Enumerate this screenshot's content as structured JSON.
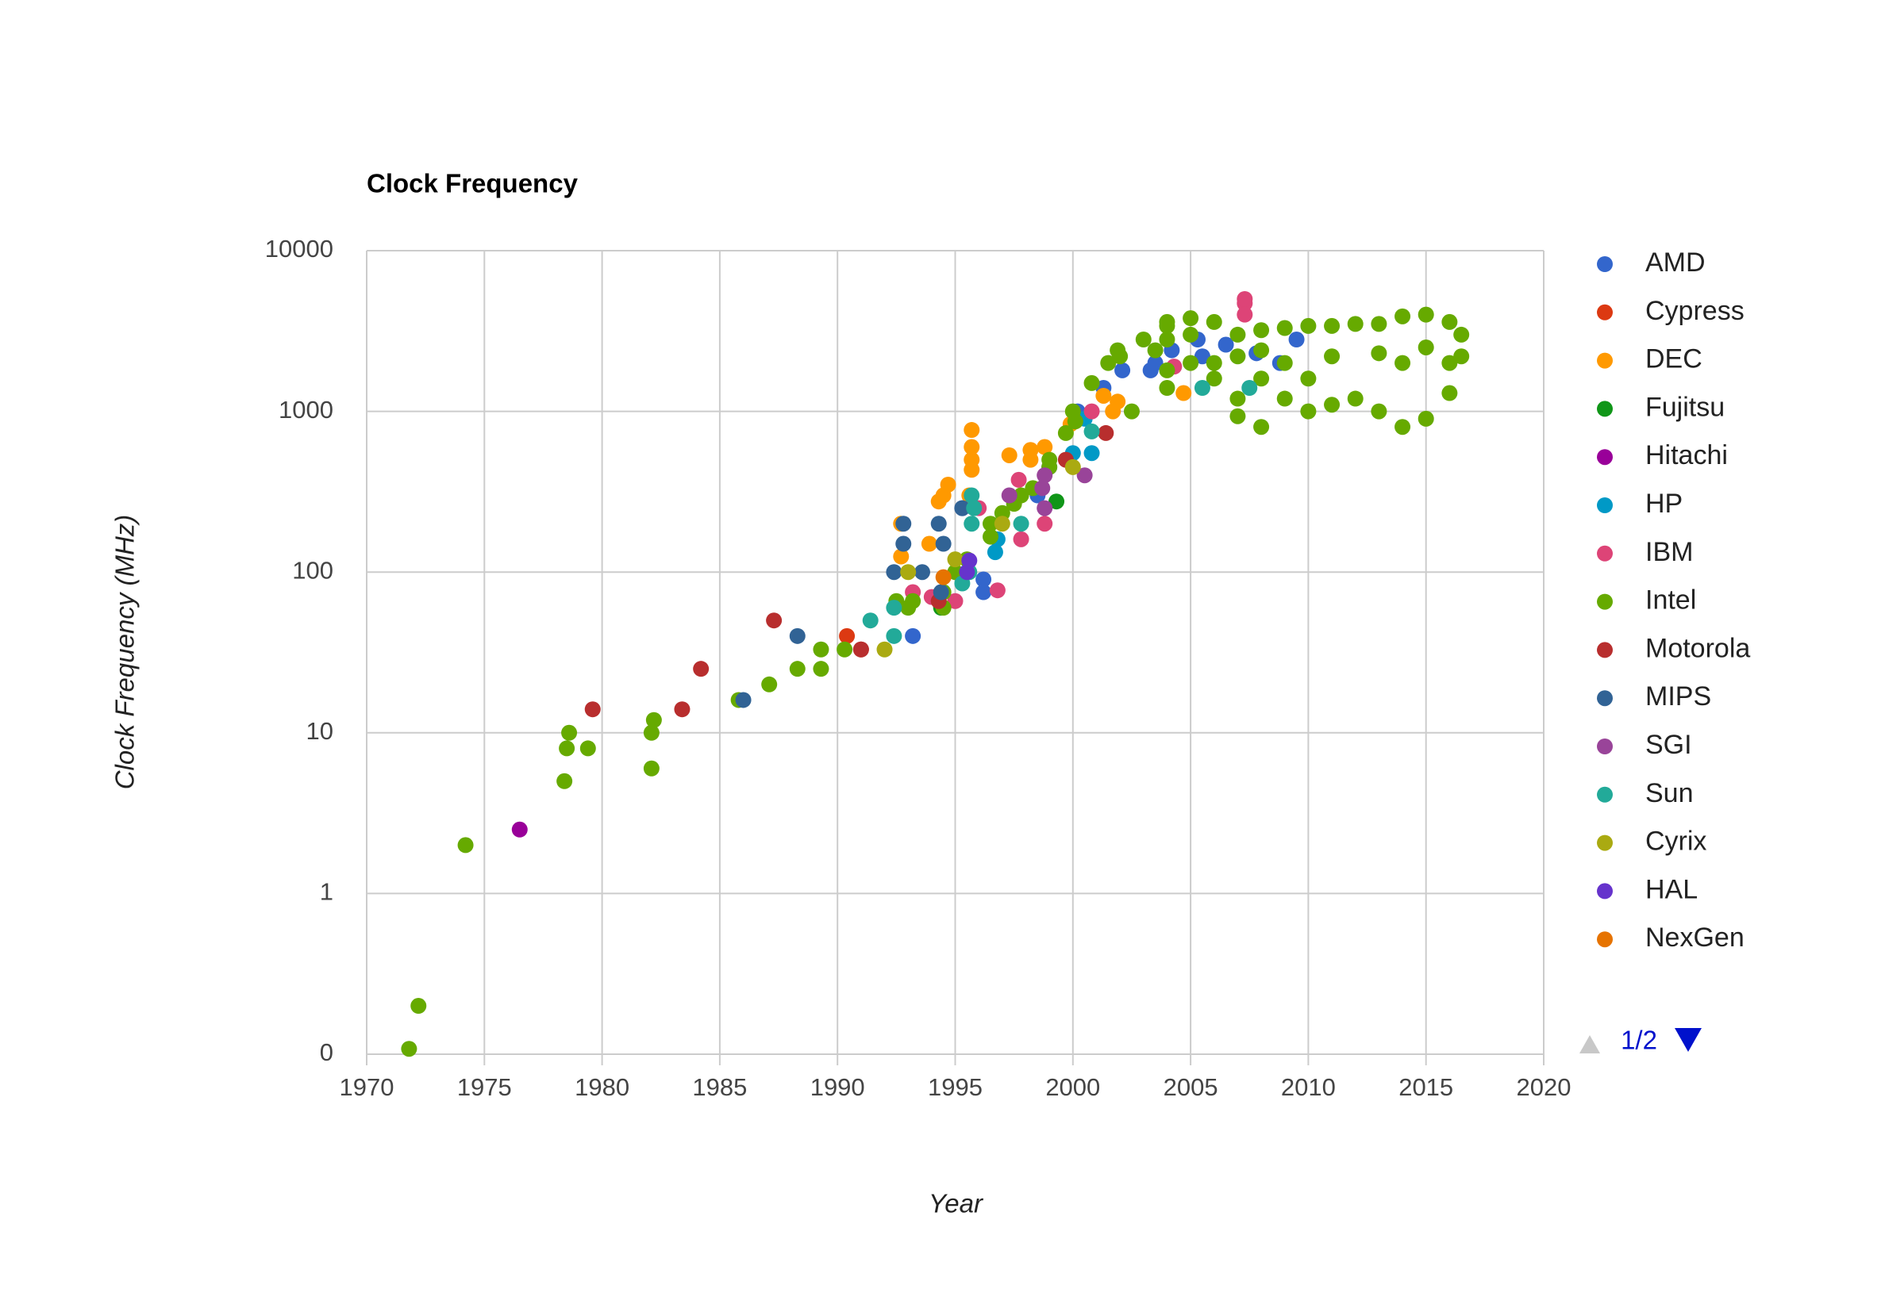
{
  "chart_data": {
    "type": "scatter",
    "title": "Clock Frequency",
    "x_label": "Year",
    "y_label": "Clock Frequency (MHz)",
    "xlim": [
      1970,
      2020
    ],
    "xticks": [
      1970,
      1975,
      1980,
      1985,
      1990,
      1995,
      2000,
      2005,
      2010,
      2015,
      2020
    ],
    "ylim": [
      0.1,
      10000
    ],
    "yticks": [
      {
        "value": 0.1,
        "label": "0"
      },
      1,
      10,
      100,
      1000,
      10000
    ],
    "y_log": true,
    "grid": true,
    "legend": "right",
    "legend_page": "1/2",
    "series": [
      {
        "name": "AMD",
        "color": "#3366cc",
        "x": [
          1993.2,
          1996.2,
          1996.2,
          1995.5,
          1995.3,
          1998.5,
          1999,
          2000.2,
          2001.3,
          2002.1,
          2003.3,
          2003.5,
          2004.2,
          2005.3,
          2005.5,
          2006.5,
          2007.8,
          2008.8,
          2009.5
        ],
        "values": [
          40,
          75,
          90,
          100,
          250,
          300,
          450,
          1000,
          1400,
          1800,
          1800,
          2000,
          2400,
          2800,
          2200,
          2600,
          2300,
          2000,
          2800
        ]
      },
      {
        "name": "Cypress",
        "color": "#dc3912",
        "x": [
          1990.4,
          1991
        ],
        "values": [
          40,
          33
        ]
      },
      {
        "name": "DEC",
        "color": "#ff9900",
        "x": [
          1992.7,
          1992.7,
          1993.9,
          1994.3,
          1994.5,
          1994.7,
          1995.6,
          1995.7,
          1995.7,
          1995.7,
          1995.7,
          1997.3,
          1998.2,
          1998.2,
          1998.8,
          1999.9,
          2001.3,
          2001.7,
          2001.9,
          2004.7
        ],
        "values": [
          125,
          200,
          150,
          275,
          300,
          350,
          300,
          433,
          500,
          600,
          766,
          533,
          500,
          575,
          600,
          833,
          1250,
          1000,
          1150,
          1300
        ]
      },
      {
        "name": "Fujitsu",
        "color": "#109618",
        "x": [
          1994.4,
          1999.3
        ],
        "values": [
          60,
          275
        ]
      },
      {
        "name": "Hitachi",
        "color": "#990099",
        "x": [
          1976.5
        ],
        "values": [
          2.5
        ]
      },
      {
        "name": "HP",
        "color": "#0099c6",
        "x": [
          1996.7,
          1996.8,
          2000,
          2000.8,
          2000.5
        ],
        "values": [
          133,
          160,
          550,
          550,
          900
        ]
      },
      {
        "name": "IBM",
        "color": "#dd4477",
        "x": [
          1993.2,
          1994,
          1995,
          1996,
          1996.8,
          1997.7,
          1997.8,
          1998.8,
          2000.8,
          2004.3,
          2007.3,
          2007.3,
          2007.3
        ],
        "values": [
          75,
          70,
          66,
          250,
          77,
          375,
          160,
          200,
          1000,
          1900,
          4700,
          5000,
          4000
        ]
      },
      {
        "name": "Intel",
        "color": "#66aa00",
        "x": [
          1971.8,
          1972.2,
          1974.2,
          1978.4,
          1978.5,
          1978.6,
          1979.4,
          1982.1,
          1982.1,
          1982.2,
          1985.8,
          1987.1,
          1988.3,
          1989.3,
          1989.3,
          1990.3,
          1992.5,
          1993,
          1993.2,
          1994.5,
          1994.5,
          1995,
          1995.5,
          1996.5,
          1996.5,
          1997,
          1997.5,
          1997.8,
          1998.3,
          1999,
          1999,
          1999.7,
          2000,
          2000.1,
          2000.8,
          2001.5,
          2001.9,
          2002,
          2002.5,
          2003,
          2003.5,
          2004,
          2004,
          2004,
          2004,
          2004,
          2005,
          2005,
          2005,
          2006,
          2006,
          2006,
          2007,
          2007,
          2007,
          2007,
          2008,
          2008,
          2008,
          2008,
          2009,
          2009,
          2009,
          2010,
          2010,
          2010,
          2011,
          2011,
          2011,
          2012,
          2012,
          2013,
          2013,
          2013,
          2014,
          2014,
          2014,
          2015,
          2015,
          2015,
          2016,
          2016,
          2016,
          2016.5,
          2016.5
        ],
        "values": [
          0.108,
          0.2,
          2,
          5,
          8,
          10,
          8,
          6,
          10,
          12,
          16,
          20,
          25,
          25,
          33,
          33,
          66,
          60,
          66,
          60,
          75,
          100,
          120,
          166,
          200,
          233,
          266,
          300,
          333,
          450,
          500,
          733,
          1000,
          866,
          1500,
          2000,
          2400,
          2200,
          1000,
          2800,
          2400,
          3400,
          3600,
          1400,
          1800,
          2800,
          3800,
          3000,
          2000,
          3600,
          2000,
          1600,
          3000,
          2200,
          1200,
          933,
          3200,
          2400,
          1600,
          800,
          3300,
          2000,
          1200,
          3400,
          1000,
          1600,
          3400,
          1100,
          2200,
          3500,
          1200,
          3500,
          1000,
          2300,
          3900,
          800,
          2000,
          4000,
          900,
          2500,
          3600,
          1300,
          2000,
          3000,
          2200
        ]
      },
      {
        "name": "Motorola",
        "color": "#b82e2e",
        "x": [
          1979.6,
          1983.4,
          1984.2,
          1987.3,
          1991,
          1994.3,
          1999.7,
          2001.4
        ],
        "values": [
          14,
          14,
          25,
          50,
          33,
          66,
          500,
          733
        ]
      },
      {
        "name": "MIPS",
        "color": "#316395",
        "x": [
          1986,
          1988.3,
          1992.4,
          1992.8,
          1992.8,
          1993.6,
          1994.3,
          1994.5,
          1994.4,
          1995.3
        ],
        "values": [
          16,
          40,
          100,
          150,
          200,
          100,
          200,
          150,
          75,
          250
        ]
      },
      {
        "name": "SGI",
        "color": "#994499",
        "x": [
          1997.3,
          1998.7,
          1998.8,
          1998.8,
          2000.5
        ],
        "values": [
          300,
          333,
          250,
          400,
          400
        ]
      },
      {
        "name": "Sun",
        "color": "#22aa99",
        "x": [
          1991.4,
          1992.4,
          1992.4,
          1995.3,
          1995.6,
          1995.7,
          1995.7,
          1995.8,
          1997.8,
          2000.8,
          2005.5,
          2007.5
        ],
        "values": [
          50,
          40,
          60,
          85,
          100,
          200,
          300,
          250,
          200,
          750,
          1400,
          1400
        ]
      },
      {
        "name": "Cyrix",
        "color": "#aaaa11",
        "x": [
          1992,
          1993,
          1995,
          1997,
          2000
        ],
        "values": [
          33,
          100,
          120,
          200,
          450
        ]
      },
      {
        "name": "HAL",
        "color": "#6633cc",
        "x": [
          1995.5,
          1995.6
        ],
        "values": [
          100,
          118
        ]
      },
      {
        "name": "NexGen",
        "color": "#e67300",
        "x": [
          1994.5
        ],
        "values": [
          93
        ]
      }
    ]
  }
}
